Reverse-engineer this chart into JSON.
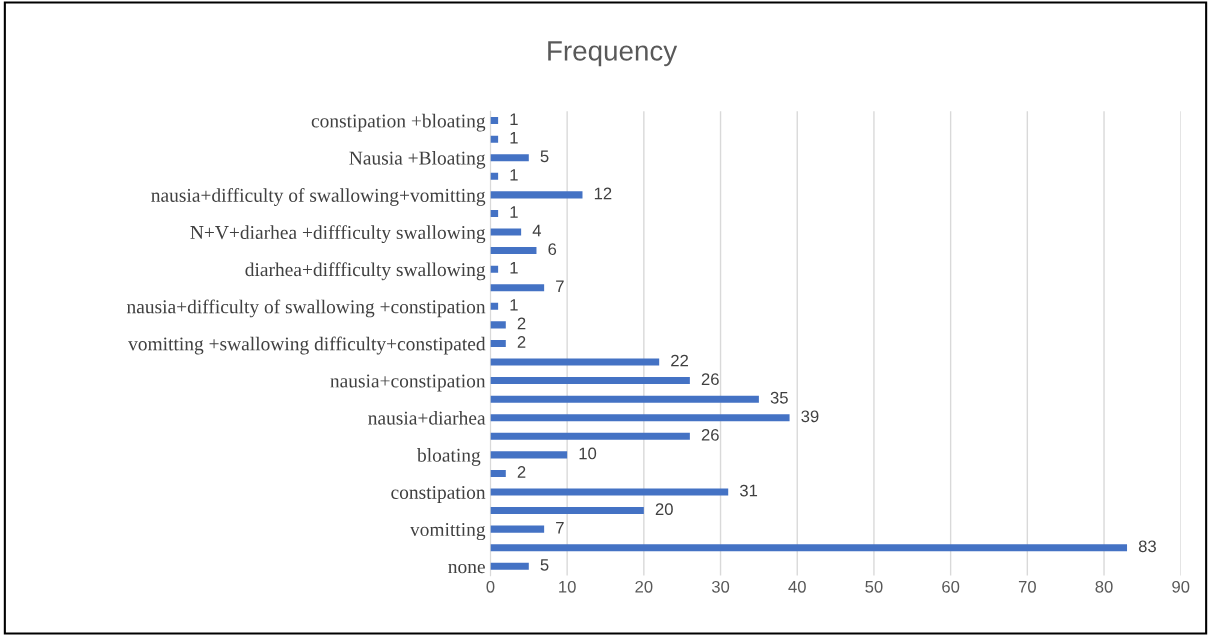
{
  "chart_data": {
    "type": "bar",
    "orientation": "horizontal",
    "title": "Frequency",
    "categories": [
      "constipation +bloating",
      null,
      "Nausia +Bloating",
      null,
      "nausia+difficulty of swallowing+vomitting",
      null,
      "N+V+diarhea +diffficulty swallowing",
      null,
      "diarhea+diffficulty swallowing",
      null,
      "nausia+difficulty of swallowing +constipation",
      null,
      "vomitting +swallowing difficulty+constipated",
      null,
      "nausia+constipation",
      null,
      "nausia+diarhea",
      null,
      "bloating ",
      null,
      "constipation",
      null,
      "vomitting",
      null,
      "none"
    ],
    "values": [
      1,
      1,
      5,
      1,
      12,
      1,
      4,
      6,
      1,
      7,
      1,
      2,
      2,
      22,
      26,
      35,
      39,
      26,
      10,
      2,
      31,
      20,
      7,
      83,
      5
    ],
    "color": "#4472c4",
    "data_labels": true,
    "xlim": [
      0,
      90
    ],
    "xticks": [
      0,
      10,
      20,
      30,
      40,
      50,
      60,
      70,
      80,
      90
    ],
    "grid": "x",
    "legend": false
  }
}
